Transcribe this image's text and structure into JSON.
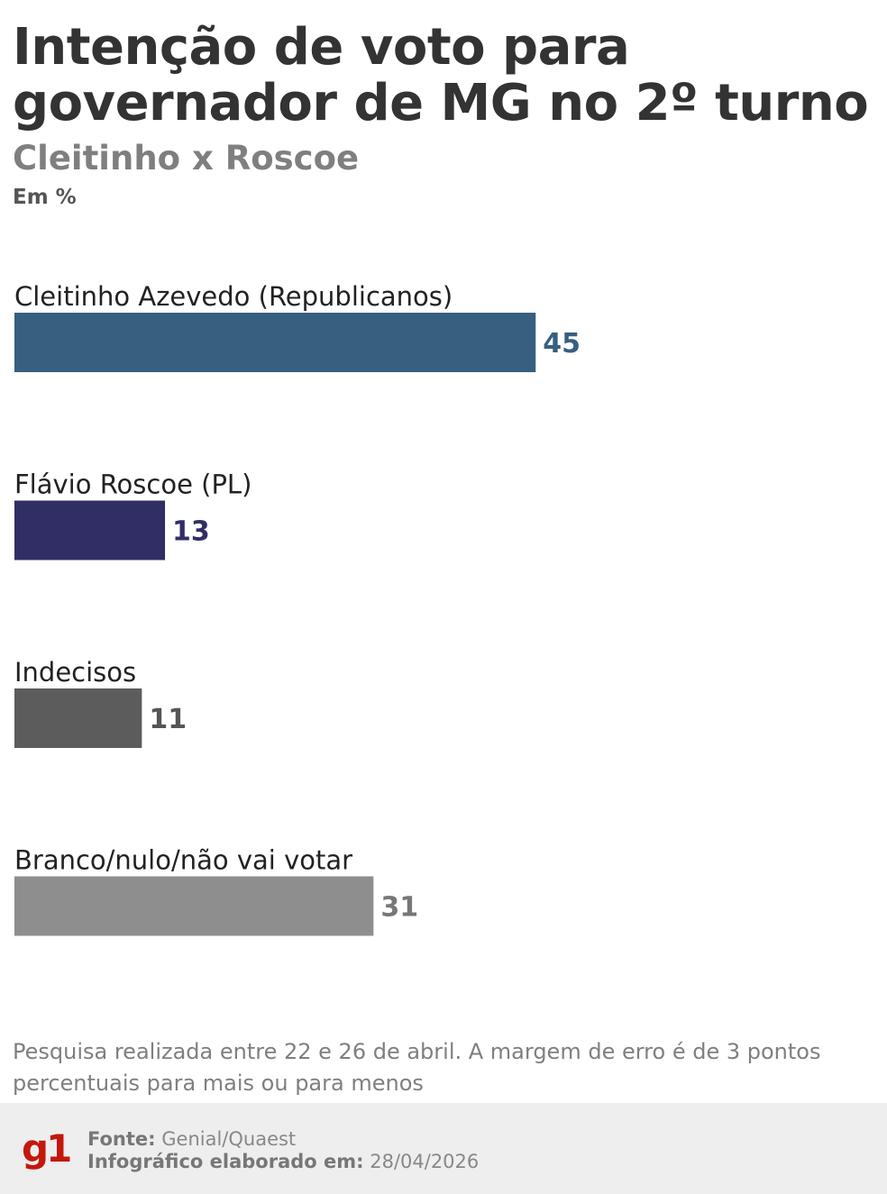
{
  "header": {
    "title": "Intenção de voto para governador de MG no 2º turno",
    "subtitle": "Cleitinho x Roscoe",
    "unit": "Em %"
  },
  "chart_data": {
    "type": "bar",
    "orientation": "horizontal",
    "categories": [
      "Cleitinho Azevedo (Republicanos)",
      "Flávio Roscoe (PL)",
      "Indecisos",
      "Branco/nulo/não vai votar"
    ],
    "values": [
      45,
      13,
      11,
      31
    ],
    "bar_colors": [
      "#365f80",
      "#312e66",
      "#5c5c5c",
      "#8e8e8e"
    ],
    "label_colors": [
      "#365f80",
      "#312e66",
      "#555555",
      "#777777"
    ],
    "title": "Intenção de voto para governador de MG no 2º turno",
    "subtitle": "Cleitinho x Roscoe",
    "ylabel": "Em %",
    "grid": false,
    "legend": "none"
  },
  "footnote": "Pesquisa realizada entre 22 e 26 de abril. A margem de erro é de 3 pontos percentuais para mais ou para menos",
  "footer": {
    "logo_text": "g1",
    "logo_color": "#c4170c",
    "source_label": "Fonte:",
    "source_value": "Genial/Quaest",
    "made_label": "Infográfico elaborado em:",
    "made_value": "28/04/2026"
  }
}
